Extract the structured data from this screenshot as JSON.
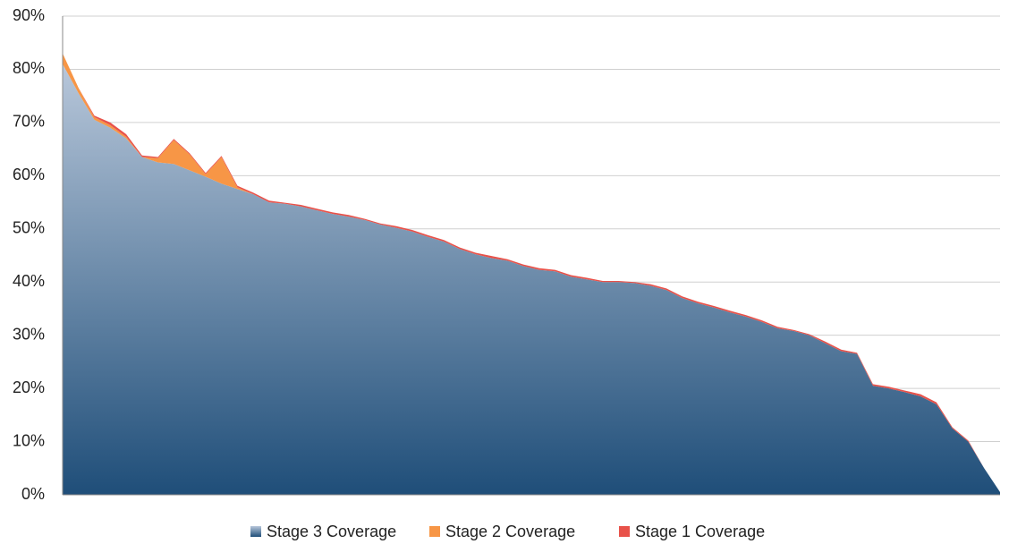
{
  "chart_data": {
    "type": "stacked_area",
    "ylim": [
      0,
      90
    ],
    "yticks": [
      {
        "value": 0,
        "label": "0%"
      },
      {
        "value": 10,
        "label": "10%"
      },
      {
        "value": 20,
        "label": "20%"
      },
      {
        "value": 30,
        "label": "30%"
      },
      {
        "value": 40,
        "label": "40%"
      },
      {
        "value": 50,
        "label": "50%"
      },
      {
        "value": 60,
        "label": "60%"
      },
      {
        "value": 70,
        "label": "70%"
      },
      {
        "value": 80,
        "label": "80%"
      },
      {
        "value": 90,
        "label": "90%"
      }
    ],
    "grid": true,
    "legend": "bottom",
    "series": [
      {
        "name": "Stage 3 Coverage",
        "color": "#1f4e79",
        "values": [
          81,
          75.5,
          70.5,
          69,
          67,
          63.5,
          62.5,
          62.2,
          61,
          59.8,
          58.5,
          57.5,
          56.5,
          55,
          54.7,
          54.2,
          53.5,
          52.8,
          52.3,
          51.7,
          50.8,
          50.2,
          49.5,
          48.5,
          47.6,
          46.2,
          45.2,
          44.5,
          44,
          43,
          42.3,
          42,
          41,
          40.5,
          40,
          40,
          39.8,
          39.3,
          38.5,
          37,
          36,
          35.2,
          34.3,
          33.5,
          32.5,
          31.3,
          30.8,
          30,
          28.5,
          27,
          26.5,
          20.5,
          20,
          19.3,
          18.5,
          17,
          12.5,
          10,
          5,
          0.5
        ]
      },
      {
        "name": "Stage 2 Coverage",
        "color": "#f79646",
        "values": [
          2,
          1,
          0.5,
          0.5,
          0.3,
          0,
          0.8,
          4.5,
          3,
          0.5,
          5,
          0.3,
          0,
          0,
          0,
          0,
          0,
          0,
          0,
          0,
          0,
          0,
          0,
          0,
          0,
          0,
          0,
          0,
          0,
          0,
          0,
          0,
          0,
          0,
          0,
          0,
          0,
          0,
          0,
          0,
          0,
          0,
          0,
          0,
          0,
          0,
          0,
          0,
          0,
          0,
          0,
          0,
          0,
          0,
          0,
          0,
          0,
          0,
          0,
          0
        ]
      },
      {
        "name": "Stage 1 Coverage",
        "color": "#e8524a",
        "values": [
          0,
          0,
          0.3,
          0.5,
          0.5,
          0.3,
          0.2,
          0.2,
          0.2,
          0.2,
          0.2,
          0.3,
          0.3,
          0.3,
          0.2,
          0.3,
          0.3,
          0.3,
          0.3,
          0.2,
          0.2,
          0.3,
          0.3,
          0.3,
          0.3,
          0.3,
          0.3,
          0.4,
          0.3,
          0.3,
          0.3,
          0.3,
          0.3,
          0.3,
          0.2,
          0.2,
          0.2,
          0.3,
          0.3,
          0.3,
          0.3,
          0.3,
          0.3,
          0.3,
          0.3,
          0.3,
          0.2,
          0.2,
          0.3,
          0.3,
          0.2,
          0.3,
          0.3,
          0.3,
          0.4,
          0.4,
          0.2,
          0.2,
          0,
          0
        ]
      }
    ]
  }
}
